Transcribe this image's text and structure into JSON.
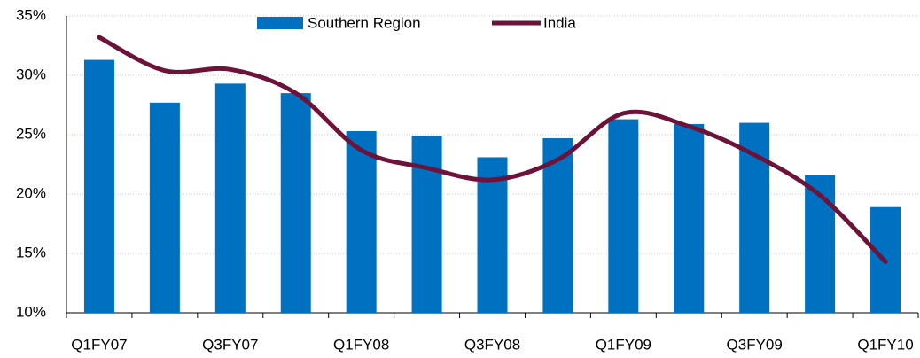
{
  "chart_data": {
    "type": "bar_line",
    "categories": [
      "Q1FY07",
      null,
      "Q3FY07",
      null,
      "Q1FY08",
      null,
      "Q3FY08",
      null,
      "Q1FY09",
      null,
      "Q3FY09",
      null,
      "Q1FY10"
    ],
    "series": [
      {
        "name": "Southern Region",
        "type": "bar",
        "color": "#0070c0",
        "values": [
          31.3,
          27.7,
          29.3,
          28.5,
          25.3,
          24.9,
          23.1,
          24.7,
          26.3,
          25.9,
          26.0,
          21.6,
          18.9
        ]
      },
      {
        "name": "India",
        "type": "line",
        "color": "#6d1238",
        "values": [
          33.2,
          30.4,
          30.5,
          28.5,
          23.7,
          22.2,
          21.2,
          22.9,
          26.8,
          25.7,
          23.3,
          19.9,
          14.3
        ]
      }
    ],
    "ylim": [
      10,
      35
    ],
    "yticks": [
      {
        "value": 10,
        "label": "10%"
      },
      {
        "value": 15,
        "label": "15%"
      },
      {
        "value": 20,
        "label": "20%"
      },
      {
        "value": 25,
        "label": "25%"
      },
      {
        "value": 30,
        "label": "30%"
      },
      {
        "value": 35,
        "label": "35%"
      }
    ],
    "grid": true,
    "legend": "top"
  }
}
